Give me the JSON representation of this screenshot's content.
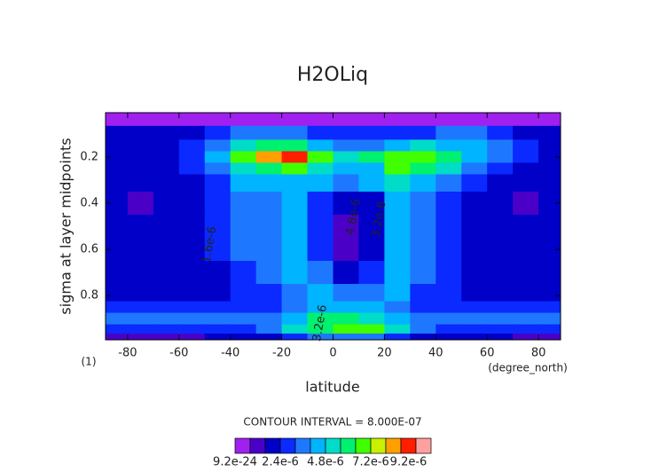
{
  "chart_data": {
    "type": "contour",
    "title": "H2OLiq",
    "x_label": "latitude",
    "y_label": "sigma at layer midpoints",
    "x_units": "(degree_north)",
    "y_units": "(1)",
    "contour_interval": {
      "value": 8e-07,
      "label": "CONTOUR INTERVAL = 8.000E-07"
    },
    "x": [
      -85,
      -75,
      -65,
      -55,
      -45,
      -35,
      -25,
      -15,
      -5,
      5,
      15,
      25,
      35,
      45,
      55,
      65,
      75,
      85
    ],
    "y": [
      0.03,
      0.1,
      0.15,
      0.2,
      0.25,
      0.3,
      0.4,
      0.5,
      0.6,
      0.7,
      0.8,
      0.85,
      0.9,
      0.95,
      0.98
    ],
    "z": [
      [
        4e-07,
        4e-07,
        4e-07,
        4e-07,
        4e-07,
        4e-07,
        4e-07,
        4e-07,
        4e-07,
        4e-07,
        4e-07,
        4e-07,
        4e-07,
        4e-07,
        4e-07,
        4e-07,
        4e-07,
        4e-07
      ],
      [
        2e-06,
        2e-06,
        2e-06,
        2e-06,
        2.8e-06,
        3.6e-06,
        3.6e-06,
        3.6e-06,
        2.8e-06,
        2.8e-06,
        2.8e-06,
        2.8e-06,
        2.8e-06,
        3.6e-06,
        3.6e-06,
        2.8e-06,
        2e-06,
        2e-06
      ],
      [
        2e-06,
        2e-06,
        2e-06,
        2.8e-06,
        3.6e-06,
        5.2e-06,
        6e-06,
        6e-06,
        4.4e-06,
        3.6e-06,
        3.6e-06,
        4.4e-06,
        5.2e-06,
        4.4e-06,
        4.4e-06,
        3.6e-06,
        2.8e-06,
        2e-06
      ],
      [
        2e-06,
        2e-06,
        2e-06,
        2.8e-06,
        4.4e-06,
        6.8e-06,
        8.4e-06,
        9.2e-06,
        6.8e-06,
        5.2e-06,
        6e-06,
        6.8e-06,
        6.8e-06,
        6e-06,
        4.4e-06,
        3.6e-06,
        2.8e-06,
        2e-06
      ],
      [
        2e-06,
        2e-06,
        2e-06,
        2.8e-06,
        3.6e-06,
        5.2e-06,
        6e-06,
        6.8e-06,
        5.2e-06,
        4.4e-06,
        4.4e-06,
        6.8e-06,
        6e-06,
        5.2e-06,
        3.6e-06,
        2.8e-06,
        2e-06,
        2e-06
      ],
      [
        2e-06,
        2e-06,
        2e-06,
        2e-06,
        2.8e-06,
        4.4e-06,
        4.4e-06,
        4.4e-06,
        4.4e-06,
        3.6e-06,
        4.4e-06,
        5.2e-06,
        4.4e-06,
        3.6e-06,
        2.8e-06,
        2e-06,
        2e-06,
        2e-06
      ],
      [
        2e-06,
        1.2e-06,
        2e-06,
        2e-06,
        2.8e-06,
        3.6e-06,
        3.6e-06,
        4.4e-06,
        2.8e-06,
        2e-06,
        2e-06,
        4.4e-06,
        3.6e-06,
        2.8e-06,
        2e-06,
        2e-06,
        1.2e-06,
        2e-06
      ],
      [
        2e-06,
        2e-06,
        2e-06,
        2e-06,
        2.8e-06,
        3.6e-06,
        3.6e-06,
        4.4e-06,
        2.8e-06,
        1.2e-06,
        2e-06,
        4.4e-06,
        3.6e-06,
        2.8e-06,
        2e-06,
        2e-06,
        2e-06,
        2e-06
      ],
      [
        2e-06,
        2e-06,
        2e-06,
        2e-06,
        2.8e-06,
        3.6e-06,
        3.6e-06,
        4.4e-06,
        2.8e-06,
        1.2e-06,
        2e-06,
        4.4e-06,
        3.6e-06,
        2.8e-06,
        2e-06,
        2e-06,
        2e-06,
        2e-06
      ],
      [
        2e-06,
        2e-06,
        2e-06,
        2e-06,
        2e-06,
        2.8e-06,
        3.6e-06,
        4.4e-06,
        3.6e-06,
        2e-06,
        2.8e-06,
        4.4e-06,
        3.6e-06,
        2.8e-06,
        2e-06,
        2e-06,
        2e-06,
        2e-06
      ],
      [
        2e-06,
        2e-06,
        2e-06,
        2e-06,
        2e-06,
        2.8e-06,
        2.8e-06,
        3.6e-06,
        4.4e-06,
        3.6e-06,
        3.6e-06,
        4.4e-06,
        2.8e-06,
        2.8e-06,
        2e-06,
        2e-06,
        2e-06,
        2e-06
      ],
      [
        2.8e-06,
        2.8e-06,
        2.8e-06,
        2.8e-06,
        2.8e-06,
        2.8e-06,
        2.8e-06,
        3.6e-06,
        4.4e-06,
        4.4e-06,
        4.4e-06,
        3.6e-06,
        2.8e-06,
        2.8e-06,
        2.8e-06,
        2.8e-06,
        2.8e-06,
        2.8e-06
      ],
      [
        3.6e-06,
        3.6e-06,
        3.6e-06,
        3.6e-06,
        3.6e-06,
        3.6e-06,
        3.6e-06,
        4.4e-06,
        6e-06,
        6e-06,
        5.2e-06,
        4.4e-06,
        3.6e-06,
        3.6e-06,
        3.6e-06,
        3.6e-06,
        3.6e-06,
        3.6e-06
      ],
      [
        2.8e-06,
        2.8e-06,
        2.8e-06,
        2.8e-06,
        2.8e-06,
        2.8e-06,
        3.6e-06,
        5.2e-06,
        6e-06,
        6.8e-06,
        6.8e-06,
        5.2e-06,
        3.6e-06,
        2.8e-06,
        2.8e-06,
        2.8e-06,
        2.8e-06,
        2.8e-06
      ],
      [
        1.2e-06,
        1.2e-06,
        1.2e-06,
        1.2e-06,
        2e-06,
        2e-06,
        2e-06,
        2.8e-06,
        3.6e-06,
        3.6e-06,
        3.6e-06,
        2.8e-06,
        2e-06,
        2e-06,
        2e-06,
        2e-06,
        1.2e-06,
        1.2e-06
      ]
    ],
    "colors": [
      "#a020f0",
      "#4b00c8",
      "#0000c8",
      "#0a2aff",
      "#1e78ff",
      "#00b4ff",
      "#00dcc8",
      "#00f070",
      "#40ff00",
      "#c8f000",
      "#ffa000",
      "#ff1e00",
      "#ffa0a0"
    ],
    "xlim": [
      -88.6,
      88.6
    ],
    "ylim": [
      0.992,
      0.008
    ],
    "xticks": [
      -80,
      -60,
      -40,
      -20,
      0,
      20,
      40,
      60,
      80
    ],
    "yticks": [
      0.2,
      0.4,
      0.6,
      0.8
    ],
    "colorbar_ticks": [
      {
        "value": 9.2e-24,
        "label": "9.2e-24"
      },
      {
        "value": 2.4e-06,
        "label": "2.4e-6"
      },
      {
        "value": 4.8e-06,
        "label": "4.8e-6"
      },
      {
        "value": 7.2e-06,
        "label": "7.2e-6"
      },
      {
        "value": 9.2e-06,
        "label": "9.2e-6"
      }
    ],
    "annotations": [
      {
        "text": "1.6e-6",
        "x": -48,
        "y": 0.58
      },
      {
        "text": "3.2e-6",
        "x": 18,
        "y": 0.47
      },
      {
        "text": "4.8e-6",
        "x": 8,
        "y": 0.46
      },
      {
        "text": "3.2e-6",
        "x": -5,
        "y": 0.92
      }
    ]
  }
}
